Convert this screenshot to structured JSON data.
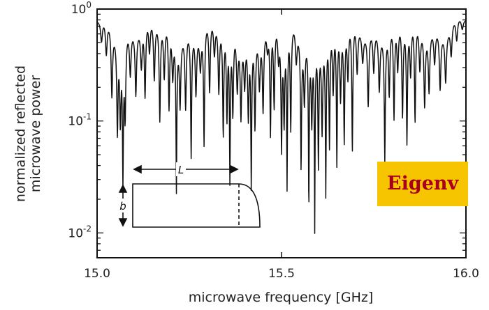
{
  "overlay_label": "Eigenv",
  "chart_data": {
    "type": "line",
    "title": "",
    "xlabel": "microwave frequency [GHz]",
    "ylabel": "normalized reflected microwave power",
    "xlim": [
      15.0,
      16.0
    ],
    "ylim": [
      0.006,
      1.0
    ],
    "yscale": "log",
    "grid": false,
    "x_ticks": [
      {
        "value": 15.0,
        "label": "15.0"
      },
      {
        "value": 15.5,
        "label": "15.5"
      },
      {
        "value": 16.0,
        "label": "16.0"
      }
    ],
    "y_ticks": [
      {
        "value": 1.0,
        "base": "10",
        "exp": "0"
      },
      {
        "value": 0.1,
        "base": "10",
        "exp": "-1"
      },
      {
        "value": 0.01,
        "base": "10",
        "exp": "-2"
      }
    ],
    "minima": [
      [
        15.012,
        0.52
      ],
      [
        15.025,
        0.4
      ],
      [
        15.04,
        0.2
      ],
      [
        15.055,
        0.12
      ],
      [
        15.063,
        0.16
      ],
      [
        15.07,
        0.045
      ],
      [
        15.076,
        0.15
      ],
      [
        15.09,
        0.32
      ],
      [
        15.105,
        0.22
      ],
      [
        15.12,
        0.35
      ],
      [
        15.13,
        0.17
      ],
      [
        15.142,
        0.4
      ],
      [
        15.155,
        0.24
      ],
      [
        15.17,
        0.11
      ],
      [
        15.182,
        0.26
      ],
      [
        15.195,
        0.14
      ],
      [
        15.205,
        0.3
      ],
      [
        15.215,
        0.034
      ],
      [
        15.225,
        0.2
      ],
      [
        15.24,
        0.17
      ],
      [
        15.255,
        0.06
      ],
      [
        15.268,
        0.23
      ],
      [
        15.28,
        0.38
      ],
      [
        15.29,
        0.07
      ],
      [
        15.305,
        0.18
      ],
      [
        15.318,
        0.4
      ],
      [
        15.33,
        0.2
      ],
      [
        15.342,
        0.085
      ],
      [
        15.352,
        0.12
      ],
      [
        15.36,
        0.035
      ],
      [
        15.368,
        0.14
      ],
      [
        15.38,
        0.26
      ],
      [
        15.39,
        0.16
      ],
      [
        15.4,
        0.3
      ],
      [
        15.41,
        0.15
      ],
      [
        15.418,
        0.035
      ],
      [
        15.428,
        0.12
      ],
      [
        15.44,
        0.28
      ],
      [
        15.45,
        0.16
      ],
      [
        15.462,
        0.5
      ],
      [
        15.47,
        0.08
      ],
      [
        15.48,
        0.14
      ],
      [
        15.492,
        0.4
      ],
      [
        15.5,
        0.07
      ],
      [
        15.507,
        0.12
      ],
      [
        15.515,
        0.03
      ],
      [
        15.525,
        0.09
      ],
      [
        15.54,
        0.4
      ],
      [
        15.553,
        0.055
      ],
      [
        15.562,
        0.22
      ],
      [
        15.574,
        0.024
      ],
      [
        15.582,
        0.14
      ],
      [
        15.59,
        0.016
      ],
      [
        15.6,
        0.06
      ],
      [
        15.61,
        0.12
      ],
      [
        15.62,
        0.03
      ],
      [
        15.63,
        0.07
      ],
      [
        15.64,
        0.2
      ],
      [
        15.65,
        0.045
      ],
      [
        15.66,
        0.18
      ],
      [
        15.67,
        0.075
      ],
      [
        15.68,
        0.26
      ],
      [
        15.692,
        0.055
      ],
      [
        15.705,
        0.3
      ],
      [
        15.72,
        0.45
      ],
      [
        15.735,
        0.18
      ],
      [
        15.75,
        0.34
      ],
      [
        15.765,
        0.25
      ],
      [
        15.78,
        0.06
      ],
      [
        15.792,
        0.2
      ],
      [
        15.805,
        0.11
      ],
      [
        15.815,
        0.3
      ],
      [
        15.828,
        0.12
      ],
      [
        15.84,
        0.07
      ],
      [
        15.85,
        0.27
      ],
      [
        15.862,
        0.1
      ],
      [
        15.875,
        0.33
      ],
      [
        15.888,
        0.18
      ],
      [
        15.9,
        0.24
      ],
      [
        15.915,
        0.4
      ],
      [
        15.93,
        0.25
      ],
      [
        15.945,
        0.3
      ],
      [
        15.96,
        0.42
      ],
      [
        15.975,
        0.5
      ],
      [
        15.99,
        0.65
      ]
    ],
    "inset": {
      "type": "diagram",
      "labels": {
        "length": "L",
        "width": "b"
      }
    }
  }
}
